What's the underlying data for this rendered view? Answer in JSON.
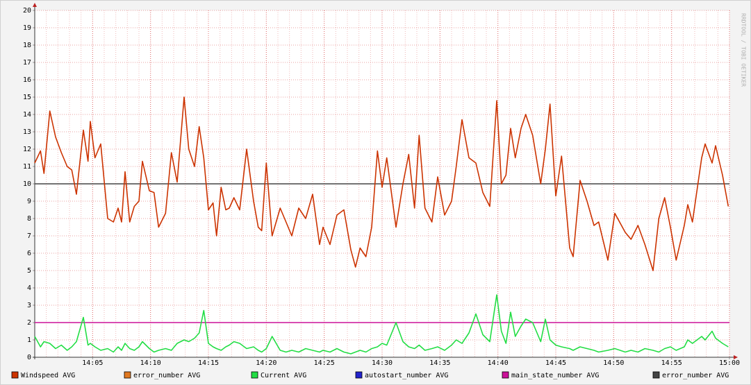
{
  "chart_data": {
    "type": "line",
    "watermark": "RRDTOOL / TOBI OETIKER",
    "x": [
      0,
      0.5,
      0.8,
      1.3,
      1.8,
      2.3,
      2.8,
      3.2,
      3.6,
      4.2,
      4.6,
      4.8,
      5.2,
      5.7,
      6.3,
      6.8,
      7.2,
      7.5,
      7.8,
      8.2,
      8.6,
      9.0,
      9.3,
      9.9,
      10.3,
      10.7,
      11.3,
      11.8,
      12.3,
      12.9,
      13.3,
      13.8,
      14.2,
      14.6,
      15.0,
      15.4,
      15.7,
      16.1,
      16.5,
      16.8,
      17.2,
      17.7,
      18.3,
      18.9,
      19.3,
      19.6,
      20.0,
      20.5,
      21.2,
      21.7,
      22.2,
      22.8,
      23.4,
      24.0,
      24.6,
      24.9,
      25.5,
      26.1,
      26.7,
      27.3,
      27.7,
      28.1,
      28.6,
      29.1,
      29.6,
      30.0,
      30.4,
      31.2,
      31.8,
      32.3,
      32.8,
      33.2,
      33.7,
      34.3,
      34.8,
      35.4,
      36.0,
      36.4,
      36.9,
      37.5,
      38.1,
      38.7,
      39.3,
      39.9,
      40.3,
      40.7,
      41.1,
      41.5,
      42.0,
      42.4,
      43.0,
      43.7,
      44.1,
      44.5,
      45.0,
      45.5,
      46.2,
      46.5,
      47.1,
      47.7,
      48.3,
      48.7,
      49.5,
      50.1,
      51.0,
      51.5,
      52.1,
      52.7,
      53.4,
      53.9,
      54.4,
      54.9,
      55.4,
      56.1,
      56.4,
      56.8,
      57.6,
      57.9,
      58.5,
      58.8,
      59.4,
      59.9
    ],
    "xlim": [
      0,
      60
    ],
    "xticks": [
      {
        "value": 5,
        "label": "14:05"
      },
      {
        "value": 10,
        "label": "14:10"
      },
      {
        "value": 15,
        "label": "14:15"
      },
      {
        "value": 20,
        "label": "14:20"
      },
      {
        "value": 25,
        "label": "14:25"
      },
      {
        "value": 30,
        "label": "14:30"
      },
      {
        "value": 35,
        "label": "14:35"
      },
      {
        "value": 40,
        "label": "14:40"
      },
      {
        "value": 45,
        "label": "14:45"
      },
      {
        "value": 50,
        "label": "14:50"
      },
      {
        "value": 55,
        "label": "14:55"
      },
      {
        "value": 60,
        "label": "15:00"
      }
    ],
    "ylim": [
      0,
      20
    ],
    "yticks": [
      0,
      1,
      2,
      3,
      4,
      5,
      6,
      7,
      8,
      9,
      10,
      11,
      12,
      13,
      14,
      15,
      16,
      17,
      18,
      19,
      20
    ],
    "grid": true,
    "series": [
      {
        "name": "Windspeed AVG",
        "color": "#cc3300",
        "values": [
          11.2,
          11.9,
          10.6,
          14.2,
          12.7,
          11.8,
          11.0,
          10.8,
          9.4,
          13.1,
          11.3,
          13.6,
          11.5,
          12.3,
          8.0,
          7.8,
          8.6,
          7.8,
          10.7,
          7.8,
          8.7,
          9.0,
          11.3,
          9.6,
          9.5,
          7.5,
          8.3,
          11.8,
          10.1,
          15.0,
          12.0,
          11.0,
          13.3,
          11.5,
          8.5,
          8.9,
          7.0,
          9.8,
          8.5,
          8.6,
          9.2,
          8.5,
          12.0,
          9.0,
          7.5,
          7.3,
          11.2,
          7.0,
          8.6,
          7.8,
          7.0,
          8.6,
          8.0,
          9.4,
          6.5,
          7.5,
          6.5,
          8.2,
          8.5,
          6.2,
          5.2,
          6.3,
          5.8,
          7.5,
          11.9,
          9.8,
          11.5,
          7.5,
          10.0,
          11.7,
          8.6,
          12.8,
          8.6,
          7.8,
          10.4,
          8.2,
          9.0,
          11.0,
          13.7,
          11.5,
          11.2,
          9.5,
          8.7,
          14.8,
          10.0,
          10.5,
          13.2,
          11.5,
          13.2,
          14.0,
          12.8,
          10.0,
          12.0,
          14.6,
          9.3,
          11.6,
          6.3,
          5.8,
          10.2,
          9.0,
          7.6,
          7.8,
          5.6,
          8.3,
          7.2,
          6.8,
          7.6,
          6.5,
          5.0,
          8.0,
          9.2,
          7.5,
          5.6,
          7.6,
          8.8,
          7.8,
          11.5,
          12.3,
          11.2,
          12.2,
          10.5,
          8.7
        ]
      },
      {
        "name": "error_number AVG",
        "color": "#e07820"
      },
      {
        "name": "Current AVG",
        "color": "#22dd44",
        "values": [
          1.2,
          0.6,
          0.9,
          0.8,
          0.5,
          0.7,
          0.4,
          0.6,
          0.9,
          2.3,
          0.7,
          0.8,
          0.6,
          0.4,
          0.5,
          0.3,
          0.6,
          0.4,
          0.8,
          0.5,
          0.4,
          0.6,
          0.9,
          0.5,
          0.3,
          0.4,
          0.5,
          0.4,
          0.8,
          1.0,
          0.9,
          1.1,
          1.4,
          2.7,
          0.8,
          0.6,
          0.5,
          0.4,
          0.6,
          0.7,
          0.9,
          0.8,
          0.5,
          0.6,
          0.4,
          0.3,
          0.5,
          1.2,
          0.4,
          0.3,
          0.4,
          0.3,
          0.5,
          0.4,
          0.3,
          0.4,
          0.3,
          0.5,
          0.3,
          0.2,
          0.3,
          0.4,
          0.3,
          0.5,
          0.6,
          0.8,
          0.7,
          2.0,
          0.9,
          0.6,
          0.5,
          0.7,
          0.4,
          0.5,
          0.6,
          0.4,
          0.7,
          1.0,
          0.8,
          1.4,
          2.5,
          1.3,
          0.9,
          3.6,
          1.5,
          0.8,
          2.6,
          1.2,
          1.8,
          2.2,
          2.0,
          0.9,
          2.2,
          1.0,
          0.7,
          0.6,
          0.5,
          0.4,
          0.6,
          0.5,
          0.4,
          0.3,
          0.4,
          0.5,
          0.3,
          0.4,
          0.3,
          0.5,
          0.4,
          0.3,
          0.5,
          0.6,
          0.4,
          0.6,
          1.0,
          0.8,
          1.2,
          1.0,
          1.5,
          1.1,
          0.8,
          0.6
        ]
      },
      {
        "name": "autostart_number AVG",
        "color": "#2222cc"
      },
      {
        "name": "main_state_number AVG",
        "color": "#cc1199",
        "x": [
          0,
          60
        ],
        "values": [
          2,
          2
        ]
      },
      {
        "name": "error_number AVG",
        "color": "#444444",
        "x": [
          0,
          60
        ],
        "values": [
          10,
          10
        ]
      }
    ]
  }
}
